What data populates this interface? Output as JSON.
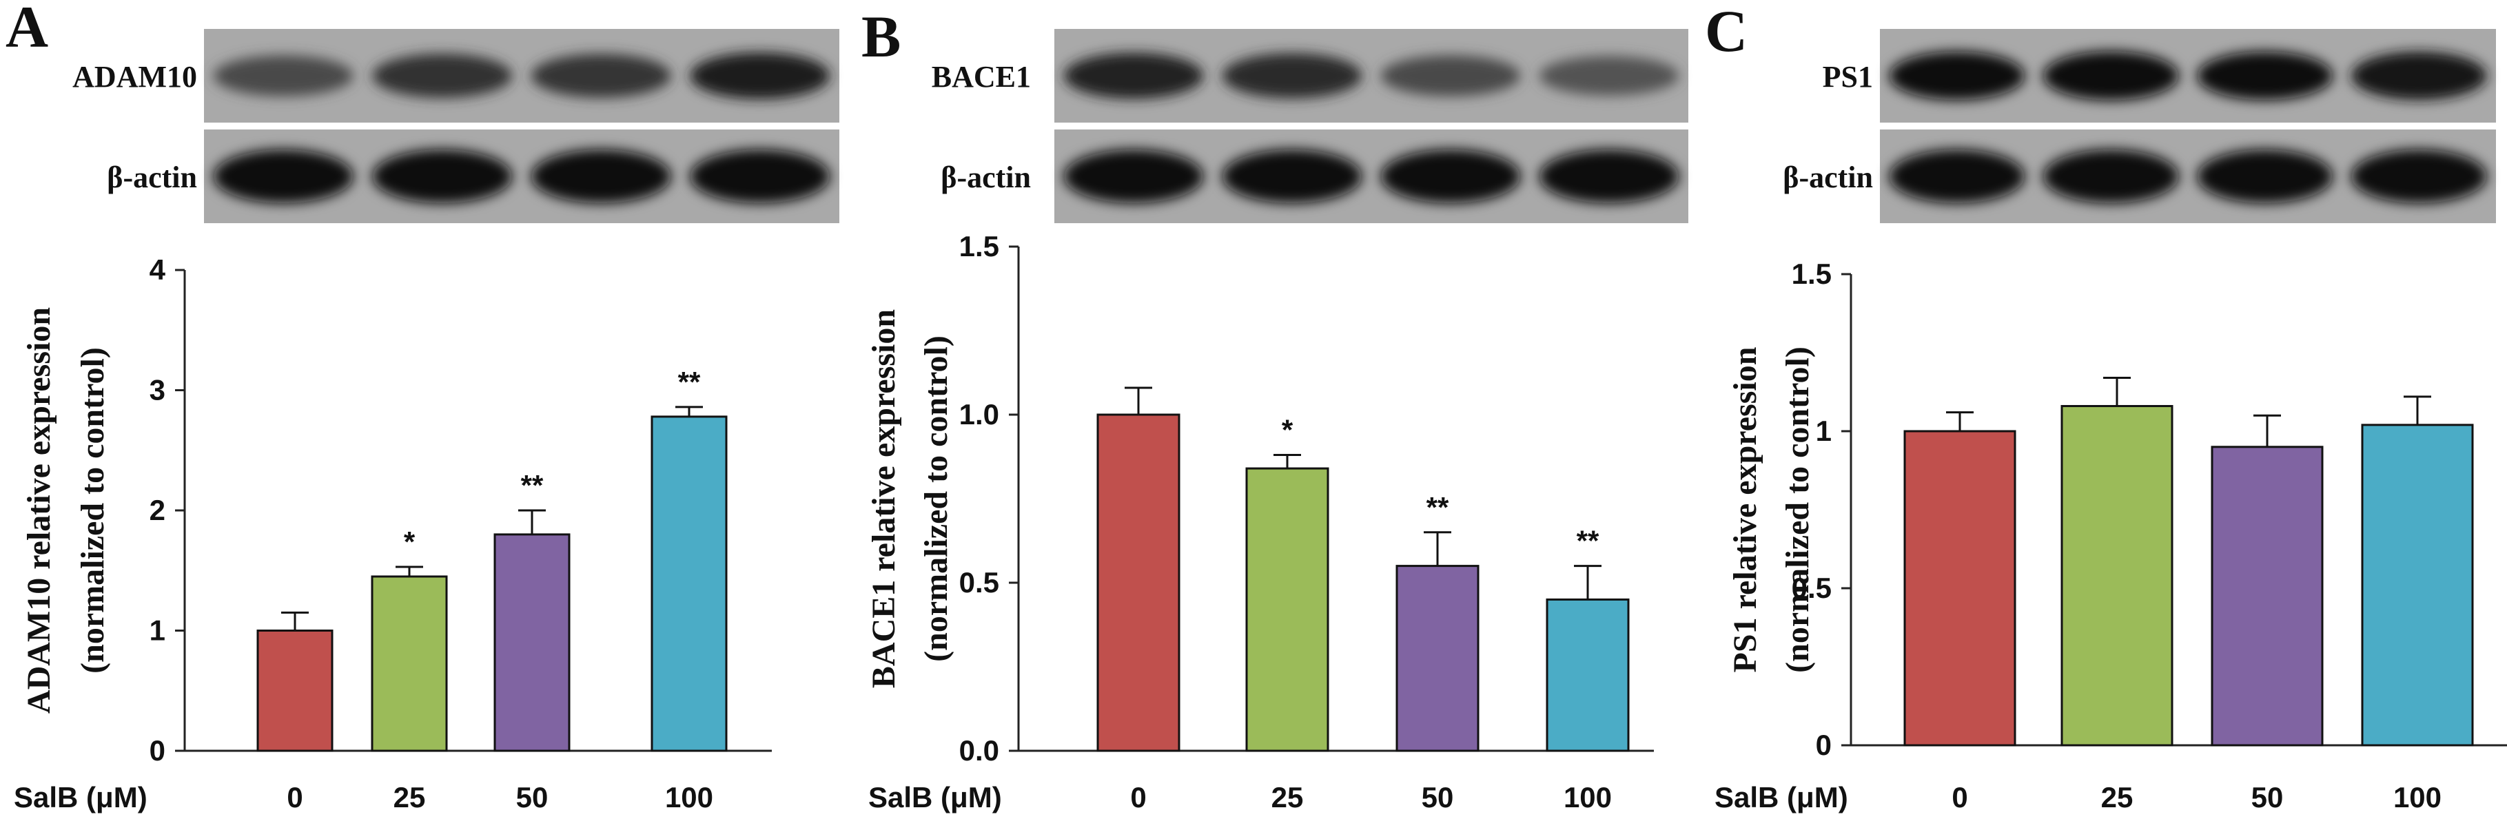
{
  "figure": {
    "x_axis_prefix": "SalB (μM)",
    "panels": [
      {
        "letter": "A",
        "blot": {
          "target_label": "ADAM10",
          "control_label": "β-actin",
          "target_intensity": [
            0.55,
            0.72,
            0.7,
            0.85
          ]
        },
        "chart_data": {
          "type": "bar",
          "categories": [
            "0",
            "25",
            "50",
            "100"
          ],
          "values": [
            1.0,
            1.45,
            1.8,
            2.78
          ],
          "errors": [
            0.15,
            0.08,
            0.2,
            0.08
          ],
          "significance": [
            "",
            "*",
            "**",
            "**"
          ],
          "ylabel": "ADAM10 relative expression (normalized to control)",
          "ylabel_line1": "ADAM10 relative expression",
          "ylabel_line2": "(normalized to control)",
          "ylim": [
            0,
            4
          ],
          "yticks": [
            0,
            1,
            2,
            3,
            4
          ],
          "ytick_labels": [
            "0",
            "1",
            "2",
            "3",
            "4"
          ],
          "colors": [
            "#c0504d",
            "#9bbb59",
            "#8064a2",
            "#4bacc6"
          ],
          "grid": false
        }
      },
      {
        "letter": "B",
        "blot": {
          "target_label": "BACE1",
          "control_label": "β-actin",
          "target_intensity": [
            0.82,
            0.78,
            0.55,
            0.48
          ]
        },
        "chart_data": {
          "type": "bar",
          "categories": [
            "0",
            "25",
            "50",
            "100"
          ],
          "values": [
            1.0,
            0.84,
            0.55,
            0.45
          ],
          "errors": [
            0.08,
            0.04,
            0.1,
            0.1
          ],
          "significance": [
            "",
            "*",
            "**",
            "**"
          ],
          "ylabel": "BACE1 relative expression (normalized to control)",
          "ylabel_line1": "BACE1 relative expression",
          "ylabel_line2": "(normalized to control)",
          "ylim": [
            0,
            1.5
          ],
          "yticks": [
            0,
            0.5,
            1.0,
            1.5
          ],
          "ytick_labels": [
            "0.0",
            "0.5",
            "1.0",
            "1.5"
          ],
          "colors": [
            "#c0504d",
            "#9bbb59",
            "#8064a2",
            "#4bacc6"
          ],
          "grid": false
        }
      },
      {
        "letter": "C",
        "blot": {
          "target_label": "PS1",
          "control_label": "β-actin",
          "target_intensity": [
            0.95,
            0.98,
            0.95,
            0.93
          ]
        },
        "chart_data": {
          "type": "bar",
          "categories": [
            "0",
            "25",
            "50",
            "100"
          ],
          "values": [
            1.0,
            1.08,
            0.95,
            1.02
          ],
          "errors": [
            0.06,
            0.09,
            0.1,
            0.09
          ],
          "significance": [
            "",
            "",
            "",
            ""
          ],
          "ylabel": "PS1 relative expression (normalized to control)",
          "ylabel_line1": "PS1 relative expression",
          "ylabel_line2": "(normalized to control)",
          "ylim": [
            0,
            1.5
          ],
          "yticks": [
            0,
            0.5,
            1,
            1.5
          ],
          "ytick_labels": [
            "0",
            "0.5",
            "1",
            "1.5"
          ],
          "colors": [
            "#c0504d",
            "#9bbb59",
            "#8064a2",
            "#4bacc6"
          ],
          "grid": false
        }
      }
    ]
  }
}
